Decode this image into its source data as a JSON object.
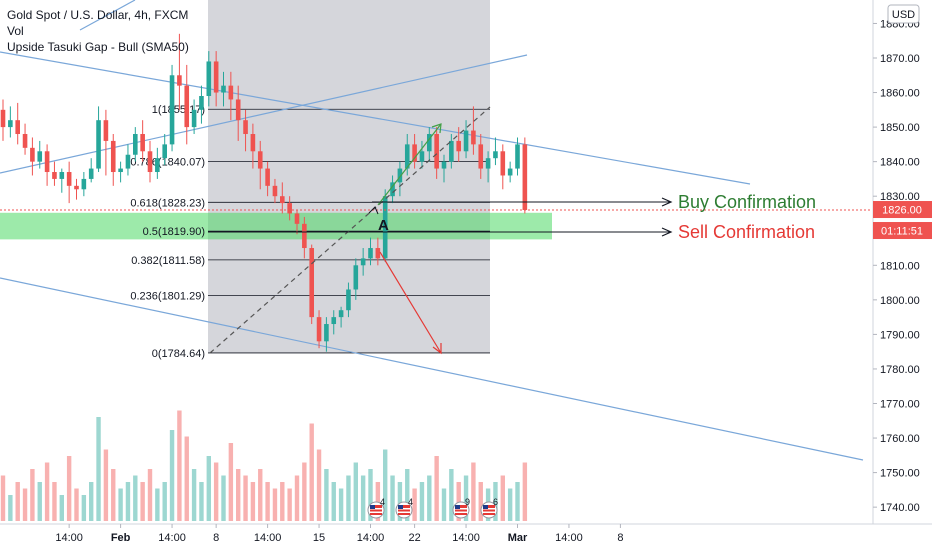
{
  "header": {
    "title": "Gold Spot / U.S. Dollar, 4h, FXCM",
    "indicator_1": "Vol",
    "indicator_2": "Upside Tasuki Gap - Bull (SMA50)"
  },
  "currency_badge": "USD",
  "price_marker": {
    "price_label": "1826.00",
    "countdown_label": "01:11:51",
    "color": "#ef5350"
  },
  "annotations": {
    "buy_label": "Buy Confirmation",
    "buy_color": "#2e7d32",
    "sell_label": "Sell Confirmation",
    "sell_color": "#e53935",
    "point_label": "A"
  },
  "events": [
    {
      "label": "4"
    },
    {
      "label": "4"
    },
    {
      "label": "9"
    },
    {
      "label": "6"
    }
  ],
  "chart_data": {
    "type": "candlestick",
    "y_axis": {
      "range": [
        1735,
        1888
      ],
      "ticks": [
        1740,
        1750,
        1760,
        1770,
        1780,
        1790,
        1800,
        1810,
        1820,
        1830,
        1840,
        1850,
        1860,
        1870,
        1880
      ],
      "tick_labels": [
        "1740.00",
        "1750.00",
        "1760.00",
        "1770.00",
        "1780.00",
        "1790.00",
        "1800.00",
        "1810.00",
        "1820.00",
        "1830.00",
        "1840.00",
        "1850.00",
        "1860.00",
        "1870.00",
        "1880.00"
      ]
    },
    "x_axis": {
      "tick_labels": [
        "14:00",
        "Feb",
        "14:00",
        "8",
        "14:00",
        "15",
        "14:00",
        "22",
        "14:00",
        "Mar",
        "14:00",
        "8"
      ],
      "tick_index": [
        -7,
        0,
        7,
        13,
        20,
        27,
        34,
        40,
        47,
        54,
        61,
        68
      ]
    },
    "fibonacci": {
      "levels": [
        {
          "label": "1(1855.17)",
          "price": 1855.17
        },
        {
          "label": "0.786(1840.07)",
          "price": 1840.07
        },
        {
          "label": "0.618(1828.23)",
          "price": 1828.23
        },
        {
          "label": "0.5(1819.90)",
          "price": 1819.9
        },
        {
          "label": "0.382(1811.58)",
          "price": 1811.58
        },
        {
          "label": "0.236(1801.29)",
          "price": 1801.29
        },
        {
          "label": "0(1784.64)",
          "price": 1784.64
        }
      ]
    },
    "zone": {
      "from": 1817.5,
      "to": 1825.2
    },
    "current_price": 1826.0,
    "candles": [
      {
        "o": 1855,
        "h": 1858,
        "c": 1850,
        "l": 1846,
        "v": 0.35
      },
      {
        "o": 1850,
        "h": 1856,
        "c": 1852,
        "l": 1847,
        "v": 0.2
      },
      {
        "o": 1852,
        "h": 1857,
        "c": 1848,
        "l": 1845,
        "v": 0.3
      },
      {
        "o": 1848,
        "h": 1851,
        "c": 1844,
        "l": 1842,
        "v": 0.25
      },
      {
        "o": 1844,
        "h": 1847,
        "c": 1840,
        "l": 1836,
        "v": 0.4
      },
      {
        "o": 1840,
        "h": 1846,
        "c": 1843,
        "l": 1838,
        "v": 0.3
      },
      {
        "o": 1843,
        "h": 1845,
        "c": 1837,
        "l": 1833,
        "v": 0.45
      },
      {
        "o": 1837,
        "h": 1840,
        "c": 1835,
        "l": 1833,
        "v": 0.3
      },
      {
        "o": 1835,
        "h": 1838,
        "c": 1837,
        "l": 1831,
        "v": 0.2
      },
      {
        "o": 1837,
        "h": 1840,
        "c": 1833,
        "l": 1828,
        "v": 0.5
      },
      {
        "o": 1833,
        "h": 1835,
        "c": 1832,
        "l": 1829,
        "v": 0.25
      },
      {
        "o": 1832,
        "h": 1837,
        "c": 1835,
        "l": 1830,
        "v": 0.2
      },
      {
        "o": 1835,
        "h": 1841,
        "c": 1838,
        "l": 1834,
        "v": 0.3
      },
      {
        "o": 1838,
        "h": 1856,
        "c": 1852,
        "l": 1837,
        "v": 0.8
      },
      {
        "o": 1852,
        "h": 1855,
        "c": 1846,
        "l": 1836,
        "v": 0.55
      },
      {
        "o": 1846,
        "h": 1848,
        "c": 1837,
        "l": 1833,
        "v": 0.4
      },
      {
        "o": 1837,
        "h": 1840,
        "c": 1838,
        "l": 1834,
        "v": 0.25
      },
      {
        "o": 1838,
        "h": 1845,
        "c": 1842,
        "l": 1836,
        "v": 0.3
      },
      {
        "o": 1842,
        "h": 1850,
        "c": 1848,
        "l": 1840,
        "v": 0.35
      },
      {
        "o": 1848,
        "h": 1852,
        "c": 1843,
        "l": 1840,
        "v": 0.3
      },
      {
        "o": 1843,
        "h": 1846,
        "c": 1837,
        "l": 1834,
        "v": 0.4
      },
      {
        "o": 1837,
        "h": 1844,
        "c": 1841,
        "l": 1835,
        "v": 0.25
      },
      {
        "o": 1841,
        "h": 1848,
        "c": 1845,
        "l": 1839,
        "v": 0.3
      },
      {
        "o": 1845,
        "h": 1868,
        "c": 1865,
        "l": 1843,
        "v": 0.7
      },
      {
        "o": 1865,
        "h": 1877,
        "c": 1862,
        "l": 1855,
        "v": 0.85
      },
      {
        "o": 1862,
        "h": 1868,
        "c": 1850,
        "l": 1845,
        "v": 0.65
      },
      {
        "o": 1850,
        "h": 1858,
        "c": 1855,
        "l": 1848,
        "v": 0.4
      },
      {
        "o": 1855,
        "h": 1862,
        "c": 1859,
        "l": 1851,
        "v": 0.3
      },
      {
        "o": 1859,
        "h": 1872,
        "c": 1869,
        "l": 1856,
        "v": 0.5
      },
      {
        "o": 1869,
        "h": 1872,
        "c": 1860,
        "l": 1856,
        "v": 0.45
      },
      {
        "o": 1860,
        "h": 1866,
        "c": 1862,
        "l": 1856,
        "v": 0.35
      },
      {
        "o": 1862,
        "h": 1866,
        "c": 1858,
        "l": 1852,
        "v": 0.6
      },
      {
        "o": 1858,
        "h": 1862,
        "c": 1852,
        "l": 1846,
        "v": 0.4
      },
      {
        "o": 1852,
        "h": 1855,
        "c": 1848,
        "l": 1843,
        "v": 0.35
      },
      {
        "o": 1848,
        "h": 1851,
        "c": 1843,
        "l": 1838,
        "v": 0.3
      },
      {
        "o": 1843,
        "h": 1846,
        "c": 1838,
        "l": 1832,
        "v": 0.4
      },
      {
        "o": 1838,
        "h": 1840,
        "c": 1833,
        "l": 1830,
        "v": 0.3
      },
      {
        "o": 1833,
        "h": 1835,
        "c": 1830,
        "l": 1828,
        "v": 0.25
      },
      {
        "o": 1830,
        "h": 1834,
        "c": 1828,
        "l": 1825,
        "v": 0.3
      },
      {
        "o": 1828,
        "h": 1830,
        "c": 1825,
        "l": 1823,
        "v": 0.25
      },
      {
        "o": 1825,
        "h": 1826,
        "c": 1822,
        "l": 1819,
        "v": 0.35
      },
      {
        "o": 1822,
        "h": 1824,
        "c": 1815,
        "l": 1812,
        "v": 0.45
      },
      {
        "o": 1815,
        "h": 1816,
        "c": 1795,
        "l": 1793,
        "v": 0.75
      },
      {
        "o": 1795,
        "h": 1797,
        "c": 1788,
        "l": 1786,
        "v": 0.55
      },
      {
        "o": 1788,
        "h": 1795,
        "c": 1793,
        "l": 1785,
        "v": 0.4
      },
      {
        "o": 1793,
        "h": 1797,
        "c": 1795,
        "l": 1790,
        "v": 0.3
      },
      {
        "o": 1795,
        "h": 1798,
        "c": 1797,
        "l": 1792,
        "v": 0.25
      },
      {
        "o": 1797,
        "h": 1805,
        "c": 1803,
        "l": 1795,
        "v": 0.35
      },
      {
        "o": 1803,
        "h": 1812,
        "c": 1810,
        "l": 1800,
        "v": 0.45
      },
      {
        "o": 1810,
        "h": 1815,
        "c": 1812,
        "l": 1807,
        "v": 0.35
      },
      {
        "o": 1812,
        "h": 1818,
        "c": 1815,
        "l": 1810,
        "v": 0.4
      },
      {
        "o": 1815,
        "h": 1818,
        "c": 1812,
        "l": 1810,
        "v": 0.3
      },
      {
        "o": 1812,
        "h": 1832,
        "c": 1830,
        "l": 1811,
        "v": 0.55
      },
      {
        "o": 1830,
        "h": 1836,
        "c": 1834,
        "l": 1828,
        "v": 0.35
      },
      {
        "o": 1834,
        "h": 1840,
        "c": 1838,
        "l": 1830,
        "v": 0.3
      },
      {
        "o": 1838,
        "h": 1848,
        "c": 1845,
        "l": 1836,
        "v": 0.4
      },
      {
        "o": 1845,
        "h": 1848,
        "c": 1840,
        "l": 1838,
        "v": 0.25
      },
      {
        "o": 1840,
        "h": 1846,
        "c": 1843,
        "l": 1838,
        "v": 0.3
      },
      {
        "o": 1843,
        "h": 1850,
        "c": 1848,
        "l": 1840,
        "v": 0.35
      },
      {
        "o": 1848,
        "h": 1850,
        "c": 1838,
        "l": 1835,
        "v": 0.5
      },
      {
        "o": 1838,
        "h": 1842,
        "c": 1840,
        "l": 1834,
        "v": 0.25
      },
      {
        "o": 1840,
        "h": 1848,
        "c": 1846,
        "l": 1838,
        "v": 0.4
      },
      {
        "o": 1846,
        "h": 1850,
        "c": 1843,
        "l": 1840,
        "v": 0.3
      },
      {
        "o": 1843,
        "h": 1852,
        "c": 1849,
        "l": 1841,
        "v": 0.35
      },
      {
        "o": 1849,
        "h": 1856,
        "c": 1845,
        "l": 1842,
        "v": 0.45
      },
      {
        "o": 1845,
        "h": 1848,
        "c": 1838,
        "l": 1835,
        "v": 0.3
      },
      {
        "o": 1838,
        "h": 1843,
        "c": 1841,
        "l": 1834,
        "v": 0.25
      },
      {
        "o": 1841,
        "h": 1847,
        "c": 1843,
        "l": 1839,
        "v": 0.3
      },
      {
        "o": 1843,
        "h": 1845,
        "c": 1836,
        "l": 1832,
        "v": 0.35
      },
      {
        "o": 1836,
        "h": 1840,
        "c": 1838,
        "l": 1834,
        "v": 0.25
      },
      {
        "o": 1838,
        "h": 1847,
        "c": 1845,
        "l": 1836,
        "v": 0.3
      },
      {
        "o": 1845,
        "h": 1847,
        "c": 1826,
        "l": 1825,
        "v": 0.45
      }
    ]
  }
}
